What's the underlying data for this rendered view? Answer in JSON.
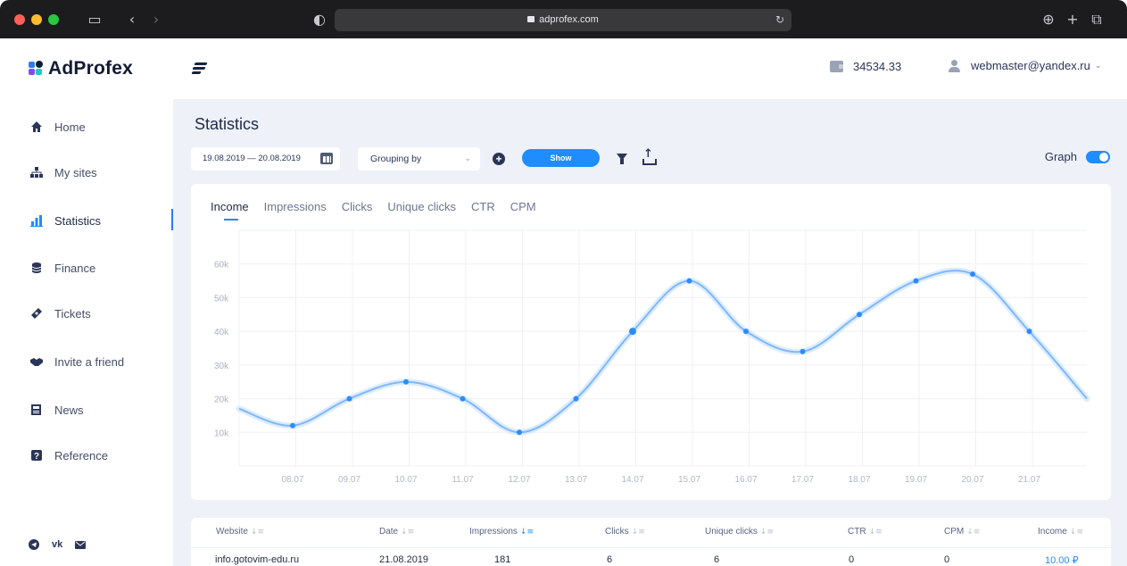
{
  "browser": {
    "url": "adprofex.com",
    "traffic_colors": [
      "#ff5f57",
      "#febc2e",
      "#28c840"
    ]
  },
  "header": {
    "logo_text": "AdProfex",
    "balance": "34534.33",
    "user_email": "webmaster@yandex.ru"
  },
  "sidebar": {
    "items": [
      {
        "label": "Home",
        "icon": "home-icon"
      },
      {
        "label": "My sites",
        "icon": "sitemap-icon"
      },
      {
        "label": "Statistics",
        "icon": "bar-chart-icon"
      },
      {
        "label": "Finance",
        "icon": "coins-icon"
      },
      {
        "label": "Tickets",
        "icon": "ticket-icon"
      },
      {
        "label": "Invite a friend",
        "icon": "handshake-icon"
      },
      {
        "label": "News",
        "icon": "newspaper-icon"
      },
      {
        "label": "Reference",
        "icon": "question-icon"
      }
    ],
    "active_index": 2,
    "social": [
      "telegram-icon",
      "vk-icon",
      "mail-icon"
    ],
    "vk_label": "vk"
  },
  "main": {
    "title": "Statistics",
    "date_range": "19.08.2019  — 20.08.2019",
    "grouping_label": "Grouping by",
    "show_label": "Show",
    "graph_label": "Graph",
    "graph_enabled": true,
    "tabs": [
      "Income",
      "Impressions",
      "Clicks",
      "Unique clicks",
      "CTR",
      "CPM"
    ],
    "active_tab": 0
  },
  "chart_data": {
    "type": "line",
    "categories": [
      "08.07",
      "09.07",
      "10.07",
      "11.07",
      "12.07",
      "13.07",
      "14.07",
      "15.07",
      "16.07",
      "17.07",
      "18.07",
      "19.07",
      "20.07",
      "21.07"
    ],
    "values": [
      12000,
      20000,
      25000,
      20000,
      10000,
      20000,
      40000,
      55000,
      40000,
      34000,
      45000,
      55000,
      57000,
      40000
    ],
    "y_ticks": [
      "10k",
      "20k",
      "30k",
      "40k",
      "50k",
      "60k"
    ],
    "ylim": [
      0,
      70000
    ],
    "grid": true,
    "line_color": "#2b8cff"
  },
  "table": {
    "columns": [
      "Website",
      "Date",
      "Impressions",
      "Clicks",
      "Unique clicks",
      "CTR",
      "CPM",
      "Income"
    ],
    "rows": [
      [
        "info.gotovim-edu.ru",
        "21.08.2019",
        "181",
        "6",
        "6",
        "0",
        "0",
        "10.00 ₽"
      ]
    ],
    "income_color": "#1f8cff"
  }
}
